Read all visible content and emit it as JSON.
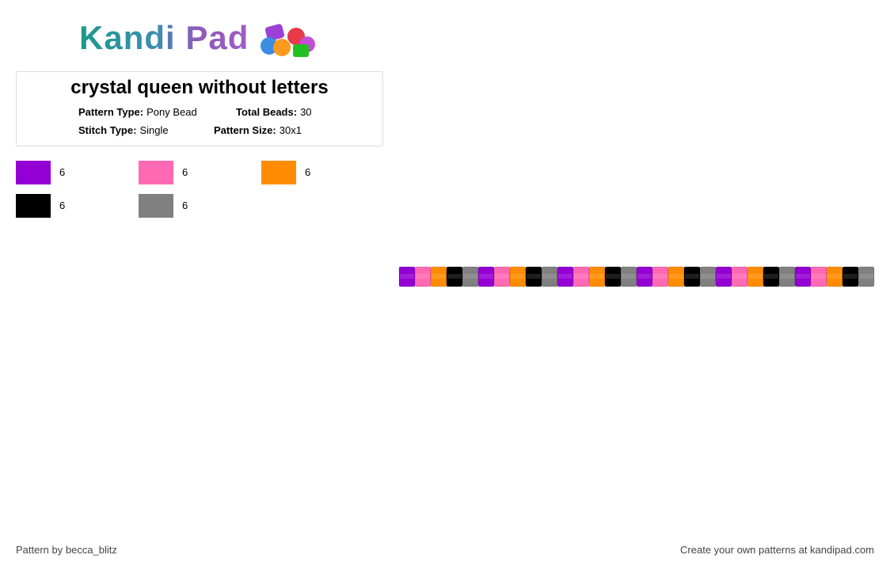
{
  "logo": "Kandi Pad",
  "title": "crystal queen without letters",
  "info": [
    {
      "label": "Pattern Type:",
      "value": "Pony Bead"
    },
    {
      "label": "Total Beads:",
      "value": 30
    },
    {
      "label": "Stitch Type:",
      "value": "Single"
    },
    {
      "label": "Pattern Size:",
      "value": "30x1"
    }
  ],
  "legend": [
    {
      "color": "#9400d3",
      "count": 6
    },
    {
      "color": "#ff69b4",
      "count": 6
    },
    {
      "color": "#ff8c00",
      "count": 6
    },
    {
      "color": "#000000",
      "count": 6
    },
    {
      "color": "#808080",
      "count": 6
    }
  ],
  "beads": [
    "#9400d3",
    "#ff69b4",
    "#ff8c00",
    "#000000",
    "#808080",
    "#9400d3",
    "#ff69b4",
    "#ff8c00",
    "#000000",
    "#808080",
    "#9400d3",
    "#ff69b4",
    "#ff8c00",
    "#000000",
    "#808080",
    "#9400d3",
    "#ff69b4",
    "#ff8c00",
    "#000000",
    "#808080",
    "#9400d3",
    "#ff69b4",
    "#ff8c00",
    "#000000",
    "#808080",
    "#9400d3",
    "#ff69b4",
    "#ff8c00",
    "#000000",
    "#808080"
  ],
  "footer": {
    "left": "Pattern by becca_blitz",
    "right": "Create your own patterns at kandipad.com"
  }
}
